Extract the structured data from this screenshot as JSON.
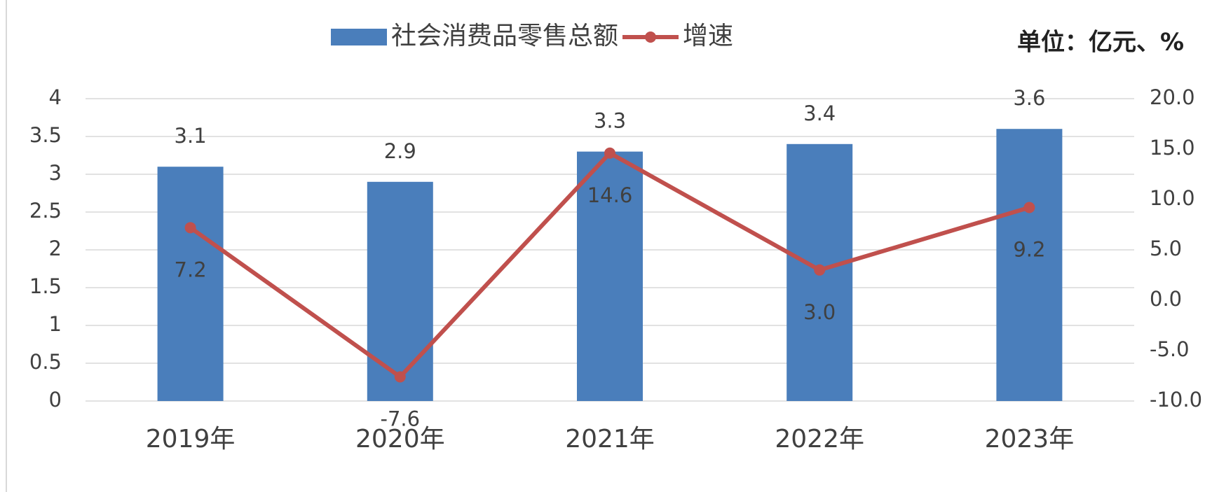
{
  "chart_data": {
    "type": "bar_line",
    "annotation": "单位：亿元、%",
    "categories": [
      "2019年",
      "2020年",
      "2021年",
      "2022年",
      "2023年"
    ],
    "series": [
      {
        "name": "社会消费品零售总额",
        "type": "bar",
        "color": "#4a7ebb",
        "values": [
          3.1,
          2.9,
          3.3,
          3.4,
          3.6
        ]
      },
      {
        "name": "增速",
        "type": "line",
        "axis": "y2",
        "color": "#c0504d",
        "values": [
          7.2,
          -7.6,
          14.6,
          3.0,
          9.2
        ],
        "value_labels": [
          "7.2",
          "-7.6",
          "14.6",
          "3.0",
          "9.2"
        ]
      }
    ],
    "ylim": [
      0,
      4
    ],
    "yticks": [
      0,
      0.5,
      1,
      1.5,
      2,
      2.5,
      3,
      3.5,
      4
    ],
    "y2lim": [
      -10,
      20
    ],
    "y2ticks": [
      {
        "value": -10,
        "label": "-10.0"
      },
      {
        "value": -5,
        "label": "-5.0"
      },
      {
        "value": 0,
        "label": "0.0"
      },
      {
        "value": 5,
        "label": "5.0"
      },
      {
        "value": 10,
        "label": "10.0"
      },
      {
        "value": 15,
        "label": "15.0"
      },
      {
        "value": 20,
        "label": "20.0"
      }
    ],
    "grid": true,
    "legend": "top"
  }
}
